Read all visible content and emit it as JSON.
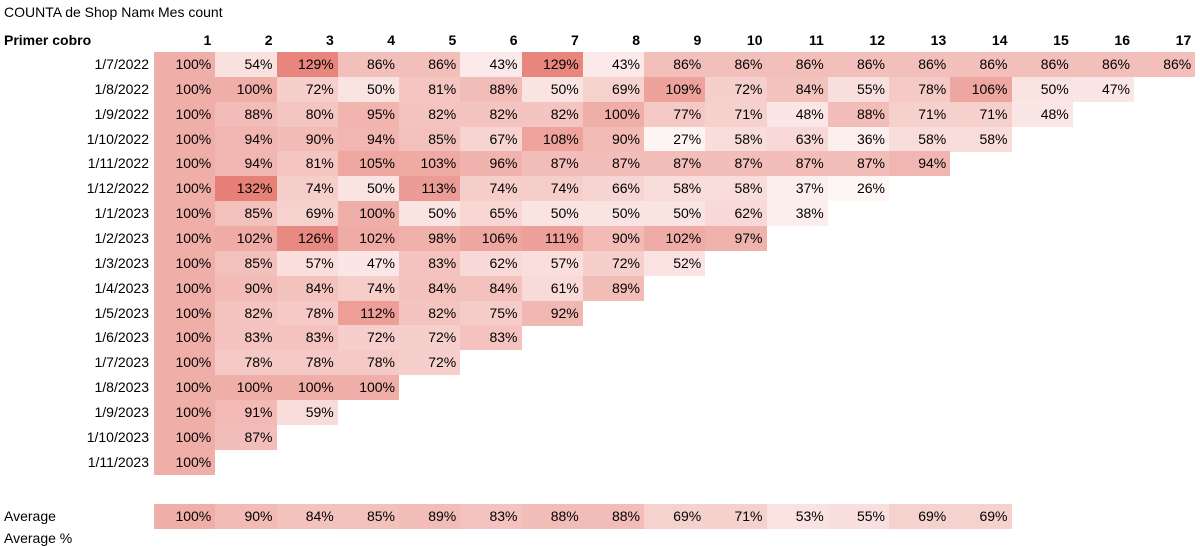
{
  "sheet": {
    "title_part1": "COUNTA de Shop Name",
    "title_part2": "Mes count",
    "row_header": "Primer cobro",
    "columns": [
      "1",
      "2",
      "3",
      "4",
      "5",
      "6",
      "7",
      "8",
      "9",
      "10",
      "11",
      "12",
      "13",
      "14",
      "15",
      "16",
      "17"
    ],
    "rows": [
      {
        "label": "1/7/2022",
        "values": [
          100,
          54,
          129,
          86,
          86,
          43,
          129,
          43,
          86,
          86,
          86,
          86,
          86,
          86,
          86,
          86,
          86
        ]
      },
      {
        "label": "1/8/2022",
        "values": [
          100,
          100,
          72,
          50,
          81,
          88,
          50,
          69,
          109,
          72,
          84,
          55,
          78,
          106,
          50,
          47
        ]
      },
      {
        "label": "1/9/2022",
        "values": [
          100,
          88,
          80,
          95,
          82,
          82,
          82,
          100,
          77,
          71,
          48,
          88,
          71,
          71,
          48
        ]
      },
      {
        "label": "1/10/2022",
        "values": [
          100,
          94,
          90,
          94,
          85,
          67,
          108,
          90,
          27,
          58,
          63,
          36,
          58,
          58
        ]
      },
      {
        "label": "1/11/2022",
        "values": [
          100,
          94,
          81,
          105,
          103,
          96,
          87,
          87,
          87,
          87,
          87,
          87,
          94
        ]
      },
      {
        "label": "1/12/2022",
        "values": [
          100,
          132,
          74,
          50,
          113,
          74,
          74,
          66,
          58,
          58,
          37,
          26
        ]
      },
      {
        "label": "1/1/2023",
        "values": [
          100,
          85,
          69,
          100,
          50,
          65,
          50,
          50,
          50,
          62,
          38
        ]
      },
      {
        "label": "1/2/2023",
        "values": [
          100,
          102,
          126,
          102,
          98,
          106,
          111,
          90,
          102,
          97
        ]
      },
      {
        "label": "1/3/2023",
        "values": [
          100,
          85,
          57,
          47,
          83,
          62,
          57,
          72,
          52
        ]
      },
      {
        "label": "1/4/2023",
        "values": [
          100,
          90,
          84,
          74,
          84,
          84,
          61,
          89
        ]
      },
      {
        "label": "1/5/2023",
        "values": [
          100,
          82,
          78,
          112,
          82,
          75,
          92
        ]
      },
      {
        "label": "1/6/2023",
        "values": [
          100,
          83,
          83,
          72,
          72,
          83
        ]
      },
      {
        "label": "1/7/2023",
        "values": [
          100,
          78,
          78,
          78,
          72
        ]
      },
      {
        "label": "1/8/2023",
        "values": [
          100,
          100,
          100,
          100
        ]
      },
      {
        "label": "1/9/2023",
        "values": [
          100,
          91,
          59
        ]
      },
      {
        "label": "1/10/2023",
        "values": [
          100,
          87
        ]
      },
      {
        "label": "1/11/2023",
        "values": [
          100
        ]
      }
    ],
    "average": {
      "label": "Average",
      "values": [
        100,
        90,
        84,
        85,
        89,
        83,
        88,
        88,
        69,
        71,
        53,
        55,
        69,
        69
      ]
    },
    "cut_label": "Average %",
    "scale": {
      "low_color": "#ffffff",
      "high_color": "#e67c73",
      "min": 0,
      "max": 135
    }
  }
}
